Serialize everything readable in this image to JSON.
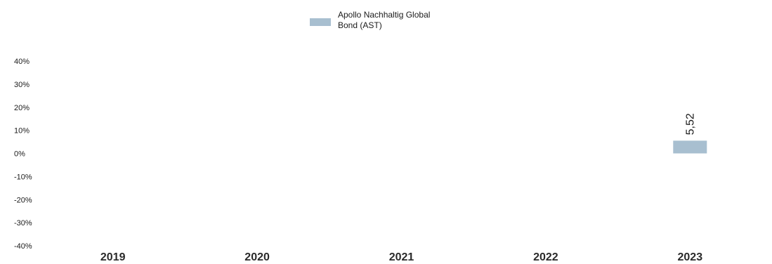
{
  "chart_data": {
    "type": "bar",
    "categories": [
      "2019",
      "2020",
      "2021",
      "2022",
      "2023"
    ],
    "series": [
      {
        "name": "Apollo Nachhaltig Global Bond (AST)",
        "values": [
          null,
          null,
          null,
          null,
          5.52
        ],
        "labels": [
          "",
          "",
          "",
          "",
          "5,52"
        ],
        "color": "#a8bfd0"
      }
    ],
    "legend": {
      "lines": [
        "Apollo Nachhaltig Global",
        "Bond (AST)"
      ],
      "position": "top-center"
    },
    "ylim": [
      -40,
      40
    ],
    "yticks": [
      40,
      30,
      20,
      10,
      0,
      -10,
      -20,
      -30,
      -40
    ],
    "ytick_labels": [
      "40%",
      "30%",
      "20%",
      "10%",
      "0%",
      "-10%",
      "-20%",
      "-30%",
      "-40%"
    ],
    "grid": false
  }
}
